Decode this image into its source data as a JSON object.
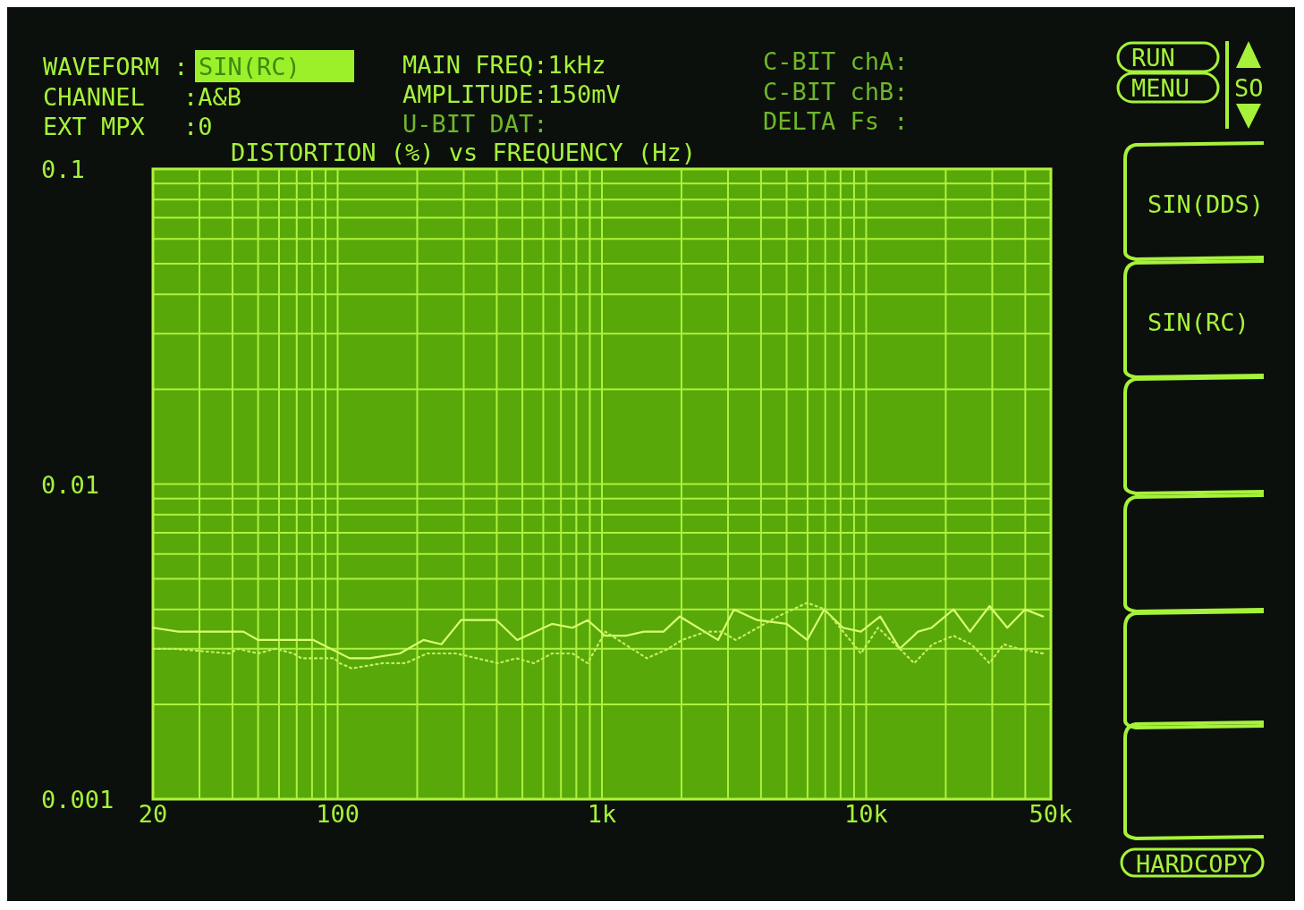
{
  "chart_data": {
    "type": "line",
    "title": "DISTORTION (%) vs FREQUENCY (Hz)",
    "log": "xy",
    "grid": true,
    "xlim": [
      20,
      50000
    ],
    "xticks": [
      20,
      {
        "value": 30,
        "label": null
      },
      {
        "value": 40,
        "label": null
      },
      {
        "value": 50,
        "label": null
      },
      {
        "value": 60,
        "label": null
      },
      {
        "value": 70,
        "label": null
      },
      {
        "value": 80,
        "label": null
      },
      {
        "value": 90,
        "label": null
      },
      100,
      {
        "value": 200,
        "label": null
      },
      {
        "value": 300,
        "label": null
      },
      {
        "value": 400,
        "label": null
      },
      {
        "value": 500,
        "label": null
      },
      {
        "value": 600,
        "label": null
      },
      {
        "value": 700,
        "label": null
      },
      {
        "value": 800,
        "label": null
      },
      {
        "value": 900,
        "label": null
      },
      {
        "value": 1000,
        "label": "1k"
      },
      {
        "value": 2000,
        "label": null
      },
      {
        "value": 3000,
        "label": null
      },
      {
        "value": 4000,
        "label": null
      },
      {
        "value": 5000,
        "label": null
      },
      {
        "value": 6000,
        "label": null
      },
      {
        "value": 7000,
        "label": null
      },
      {
        "value": 8000,
        "label": null
      },
      {
        "value": 9000,
        "label": null
      },
      {
        "value": 10000,
        "label": "10k"
      },
      {
        "value": 20000,
        "label": null
      },
      {
        "value": 30000,
        "label": null
      },
      {
        "value": 40000,
        "label": null
      },
      {
        "value": 50000,
        "label": "50k"
      }
    ],
    "ylim": [
      0.001,
      0.1
    ],
    "yticks": [
      0.001,
      {
        "value": 0.002,
        "label": null
      },
      {
        "value": 0.003,
        "label": null
      },
      {
        "value": 0.004,
        "label": null
      },
      {
        "value": 0.005,
        "label": null
      },
      {
        "value": 0.006,
        "label": null
      },
      {
        "value": 0.007,
        "label": null
      },
      {
        "value": 0.008,
        "label": null
      },
      {
        "value": 0.009,
        "label": null
      },
      0.01,
      {
        "value": 0.02,
        "label": null
      },
      {
        "value": 0.03,
        "label": null
      },
      {
        "value": 0.04,
        "label": null
      },
      {
        "value": 0.05,
        "label": null
      },
      {
        "value": 0.06,
        "label": null
      },
      {
        "value": 0.07,
        "label": null
      },
      {
        "value": 0.08,
        "label": null
      },
      {
        "value": 0.09,
        "label": null
      },
      0.1
    ],
    "series": [
      {
        "color": "#d8ff70",
        "line_style": "solid",
        "x": [
          20,
          25,
          39,
          44,
          50,
          55,
          81,
          111,
          132,
          172,
          211,
          247,
          293,
          370,
          399,
          478,
          647,
          774,
          883,
          1030,
          1230,
          1440,
          1710,
          1970,
          2750,
          3160,
          3870,
          5000,
          5980,
          6940,
          8170,
          9550,
          11300,
          13400,
          15700,
          17700,
          21400,
          24700,
          29300,
          34200,
          39900,
          46700
        ],
        "values": [
          0.0035,
          0.0034,
          0.0034,
          0.0034,
          0.0032,
          0.0032,
          0.0032,
          0.0028,
          0.0028,
          0.0029,
          0.0032,
          0.0031,
          0.0037,
          0.0037,
          0.0037,
          0.0032,
          0.0036,
          0.0035,
          0.0037,
          0.0033,
          0.0033,
          0.0034,
          0.0034,
          0.0038,
          0.0032,
          0.004,
          0.0037,
          0.0036,
          0.0032,
          0.004,
          0.0035,
          0.0034,
          0.0038,
          0.003,
          0.0034,
          0.0035,
          0.004,
          0.0034,
          0.0041,
          0.0035,
          0.004,
          0.0038
        ]
      },
      {
        "color": "#c4f060",
        "line_style": "dotted",
        "x": [
          20,
          24,
          39,
          42,
          50,
          58,
          68,
          73,
          97,
          102,
          113,
          148,
          181,
          218,
          241,
          281,
          405,
          474,
          553,
          647,
          774,
          883,
          1030,
          1300,
          1480,
          1780,
          2010,
          2480,
          2840,
          3210,
          4630,
          5980,
          7000,
          8430,
          9550,
          11100,
          13400,
          15200,
          17800,
          21400,
          25000,
          29300,
          33100,
          37800,
          46700
        ],
        "values": [
          0.003,
          0.003,
          0.0029,
          0.003,
          0.0029,
          0.003,
          0.0029,
          0.0028,
          0.0028,
          0.0027,
          0.0026,
          0.0027,
          0.0027,
          0.0029,
          0.0029,
          0.0029,
          0.0027,
          0.0028,
          0.0027,
          0.0029,
          0.0029,
          0.0027,
          0.0034,
          0.003,
          0.0028,
          0.003,
          0.0032,
          0.0034,
          0.0034,
          0.0032,
          0.0038,
          0.0042,
          0.004,
          0.0033,
          0.0029,
          0.0035,
          0.003,
          0.0027,
          0.0031,
          0.0033,
          0.0031,
          0.0027,
          0.0031,
          0.003,
          0.0029
        ]
      }
    ],
    "annotations": [
      "WAVEFORM :",
      "SIN(RC)",
      "CHANNEL",
      ":A&B",
      ":0",
      "EXT MPX",
      "MAIN FREQ:1kHz",
      "AMPLITUDE:150mV",
      "U-BIT DAT:",
      "C-BIT chA:",
      "C-BIT chB:",
      "DELTA Fs :",
      "RUN",
      "MENU",
      "SO",
      "SIN(DDS)",
      "SIN(RC)",
      "HARDCOPY"
    ]
  }
}
